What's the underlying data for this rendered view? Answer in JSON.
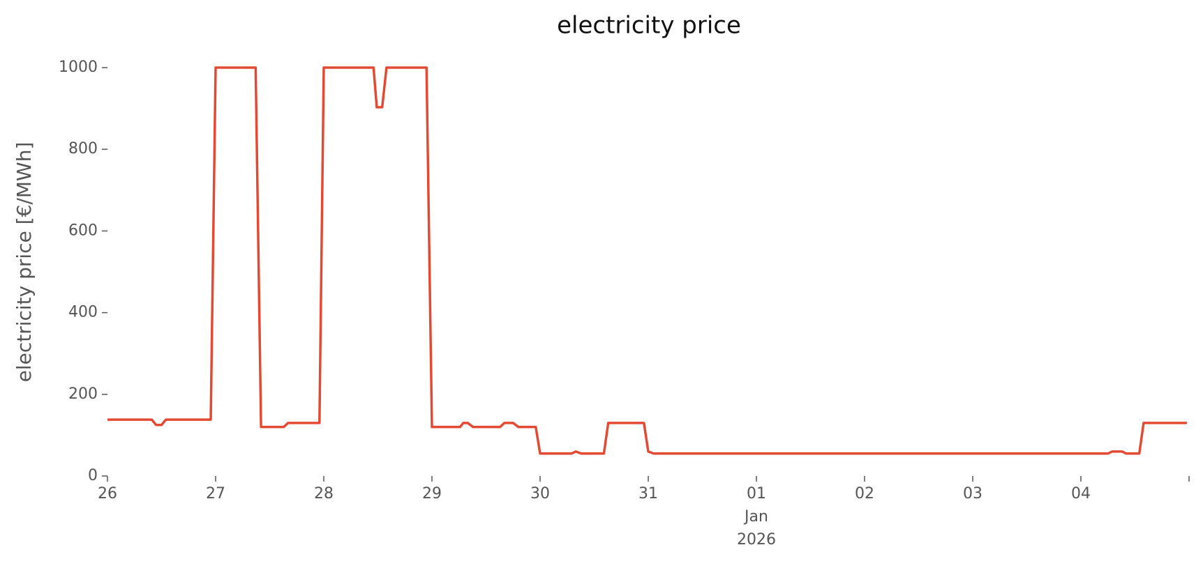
{
  "chart_data": {
    "type": "line",
    "title": "electricity price",
    "y_label": "electricity price [€/MWh]",
    "x": [
      0,
      0.41,
      0.45,
      0.5,
      0.54,
      0.955,
      1.0,
      1.37,
      1.42,
      1.63,
      1.67,
      1.96,
      2.0,
      2.46,
      2.49,
      2.54,
      2.58,
      2.95,
      3.0,
      3.26,
      3.29,
      3.33,
      3.38,
      3.63,
      3.67,
      3.75,
      3.8,
      3.96,
      4.0,
      4.29,
      4.33,
      4.38,
      4.59,
      4.63,
      4.96,
      5.0,
      5.05,
      9.25,
      9.29,
      9.38,
      9.42,
      9.54,
      9.58,
      9.98
    ],
    "series": [
      {
        "name": "electricity price",
        "color": "#e24a33",
        "values": [
          138,
          138,
          125,
          125,
          138,
          138,
          1000,
          1000,
          120,
          120,
          130,
          130,
          1000,
          1000,
          903,
          903,
          1000,
          1000,
          120,
          120,
          130,
          130,
          120,
          120,
          130,
          130,
          120,
          120,
          55,
          55,
          60,
          55,
          55,
          130,
          130,
          60,
          55,
          55,
          60,
          60,
          55,
          55,
          130,
          130
        ]
      }
    ],
    "xlim": [
      0,
      10
    ],
    "xticks": [
      {
        "value": 0,
        "label": "26"
      },
      {
        "value": 1,
        "label": "27"
      },
      {
        "value": 2,
        "label": "28"
      },
      {
        "value": 3,
        "label": "29"
      },
      {
        "value": 4,
        "label": "30"
      },
      {
        "value": 5,
        "label": "31"
      },
      {
        "value": 6,
        "label": "01\nJan\n2026"
      },
      {
        "value": 7,
        "label": "02"
      },
      {
        "value": 8,
        "label": "03"
      },
      {
        "value": 9,
        "label": "04"
      },
      {
        "value": 10,
        "label": null
      }
    ],
    "ylim": [
      0,
      1000
    ],
    "yticks": [
      0,
      200,
      400,
      600,
      800,
      1000
    ],
    "grid": false
  }
}
